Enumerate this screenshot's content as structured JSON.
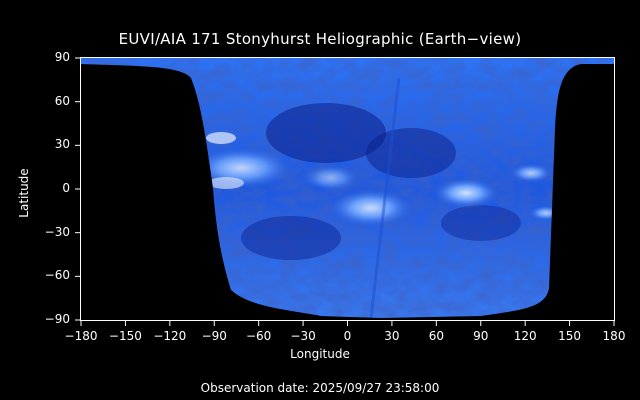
{
  "title": "EUVI/AIA 171 Stonyhurst Heliographic (Earth−view)",
  "xlabel": "Longitude",
  "ylabel": "Latitude",
  "observation_date": "Observation date: 2025/09/27 23:58:00",
  "xticks": [
    "−180",
    "−150",
    "−120",
    "−90",
    "−60",
    "−30",
    "0",
    "30",
    "60",
    "90",
    "120",
    "150",
    "180"
  ],
  "yticks": [
    "90",
    "60",
    "30",
    "0",
    "−30",
    "−60",
    "−90"
  ],
  "colors": {
    "background": "#000000",
    "map_base": "#2a6cf0",
    "map_dark": "#0a1a80",
    "map_bright": "#c8e0ff",
    "frame": "#ffffff"
  }
}
